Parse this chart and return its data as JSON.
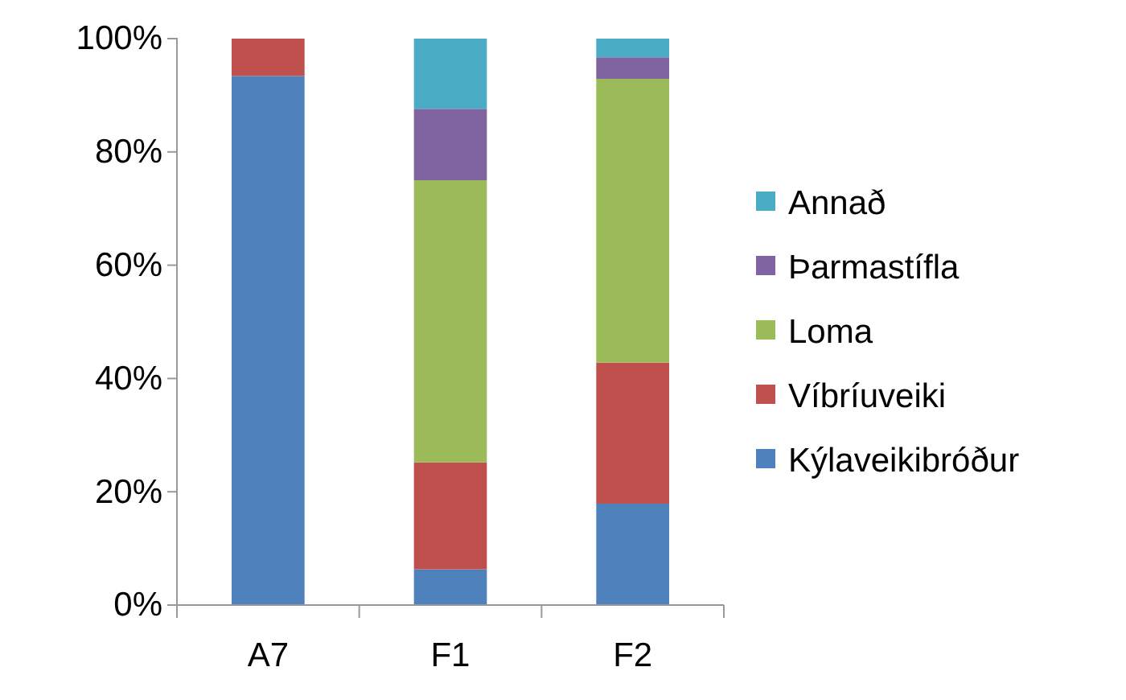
{
  "chart_data": {
    "type": "bar",
    "stacked": true,
    "categories": [
      "A7",
      "F1",
      "F2"
    ],
    "series": [
      {
        "name": "Kýlaveikibróður",
        "color": "#4f81bd",
        "values": [
          93.4,
          6.3,
          17.9
        ]
      },
      {
        "name": "Víbríuveiki",
        "color": "#c0504d",
        "values": [
          6.6,
          18.9,
          24.9
        ]
      },
      {
        "name": "Loma",
        "color": "#9bbb59",
        "values": [
          0,
          49.8,
          50.1
        ]
      },
      {
        "name": "Þarmastífla",
        "color": "#8064a2",
        "values": [
          0,
          12.6,
          3.8
        ]
      },
      {
        "name": "Annað",
        "color": "#4bacc6",
        "values": [
          0,
          12.4,
          3.3
        ]
      }
    ],
    "ylim": [
      0,
      100
    ],
    "yticks": [
      {
        "value": 0,
        "label": "0%"
      },
      {
        "value": 20,
        "label": "20%"
      },
      {
        "value": 40,
        "label": "40%"
      },
      {
        "value": 60,
        "label": "60%"
      },
      {
        "value": 80,
        "label": "80%"
      },
      {
        "value": 100,
        "label": "100%"
      }
    ],
    "grid": false,
    "legend": "right"
  }
}
